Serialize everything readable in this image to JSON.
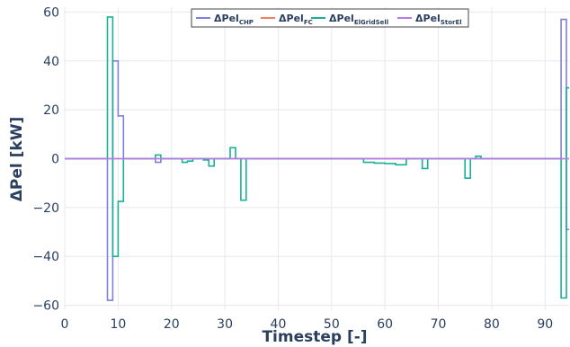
{
  "chart_data": {
    "type": "line",
    "line_shape": "step",
    "xlabel": "Timestep [-]",
    "ylabel": "ΔPel [kW]",
    "xlim": [
      0,
      94.5
    ],
    "ylim": [
      -62,
      62
    ],
    "x_ticks": [
      0,
      10,
      20,
      30,
      40,
      50,
      60,
      70,
      80,
      90
    ],
    "y_ticks": [
      -60,
      -40,
      -20,
      0,
      20,
      40,
      60
    ],
    "grid": true,
    "legend_position": "top-right",
    "legend_style": "boxed",
    "series": [
      {
        "name": "ΔPel",
        "sub": "CHP",
        "color": "#7f7fe0",
        "points": [
          [
            0,
            0
          ],
          [
            8,
            0
          ],
          [
            8,
            -58
          ],
          [
            9,
            -58
          ],
          [
            9,
            40
          ],
          [
            10,
            40
          ],
          [
            10,
            17.5
          ],
          [
            11,
            17.5
          ],
          [
            11,
            0
          ],
          [
            17,
            0
          ],
          [
            17,
            -1.5
          ],
          [
            18,
            -1.5
          ],
          [
            18,
            0
          ],
          [
            93,
            0
          ],
          [
            93,
            57
          ],
          [
            94,
            57
          ],
          [
            94,
            -29
          ],
          [
            94.5,
            -29
          ]
        ]
      },
      {
        "name": "ΔPel",
        "sub": "FC",
        "color": "#f08060",
        "points": [
          [
            0,
            0
          ],
          [
            94.5,
            0
          ]
        ]
      },
      {
        "name": "ΔPel",
        "sub": "ElGridSell",
        "color": "#1aaf9a",
        "points": [
          [
            0,
            0
          ],
          [
            8,
            0
          ],
          [
            8,
            58
          ],
          [
            9,
            58
          ],
          [
            9,
            -40
          ],
          [
            10,
            -40
          ],
          [
            10,
            -17.5
          ],
          [
            11,
            -17.5
          ],
          [
            11,
            0
          ],
          [
            17,
            0
          ],
          [
            17,
            1.5
          ],
          [
            18,
            1.5
          ],
          [
            18,
            0
          ],
          [
            22,
            0
          ],
          [
            22,
            -1.5
          ],
          [
            23,
            -1.5
          ],
          [
            23,
            -1
          ],
          [
            24,
            -1
          ],
          [
            24,
            0
          ],
          [
            26,
            0
          ],
          [
            26,
            -0.5
          ],
          [
            27,
            -0.5
          ],
          [
            27,
            -3
          ],
          [
            28,
            -3
          ],
          [
            28,
            0
          ],
          [
            31,
            0
          ],
          [
            31,
            4.5
          ],
          [
            32,
            4.5
          ],
          [
            32,
            0
          ],
          [
            33,
            0
          ],
          [
            33,
            -17
          ],
          [
            34,
            -17
          ],
          [
            34,
            0
          ],
          [
            56,
            0
          ],
          [
            56,
            -1.5
          ],
          [
            58,
            -1.5
          ],
          [
            58,
            -1.8
          ],
          [
            60,
            -1.8
          ],
          [
            60,
            -2
          ],
          [
            62,
            -2
          ],
          [
            62,
            -2.5
          ],
          [
            64,
            -2.5
          ],
          [
            64,
            0
          ],
          [
            67,
            0
          ],
          [
            67,
            -4
          ],
          [
            68,
            -4
          ],
          [
            68,
            0
          ],
          [
            75,
            0
          ],
          [
            75,
            -8
          ],
          [
            76,
            -8
          ],
          [
            76,
            0
          ],
          [
            77,
            0
          ],
          [
            77,
            1
          ],
          [
            78,
            1
          ],
          [
            78,
            0
          ],
          [
            93,
            0
          ],
          [
            93,
            -57
          ],
          [
            94,
            -57
          ],
          [
            94,
            29
          ],
          [
            94.5,
            29
          ]
        ]
      },
      {
        "name": "ΔPel",
        "sub": "StorEl",
        "color": "#b57be8",
        "points": [
          [
            0,
            0
          ],
          [
            94.5,
            0
          ]
        ]
      }
    ]
  }
}
